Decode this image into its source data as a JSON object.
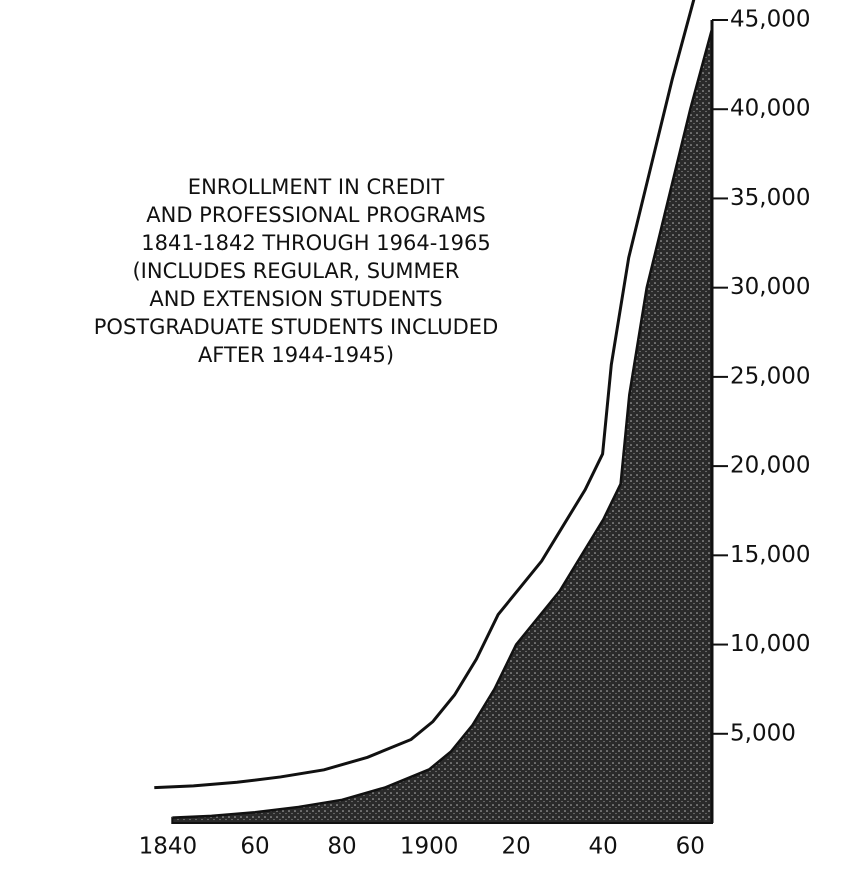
{
  "chart_data": {
    "type": "area",
    "title": [
      "ENROLLMENT IN CREDIT",
      "AND PROFESSIONAL PROGRAMS",
      "1841-1842 THROUGH 1964-1965"
    ],
    "subtitle": [
      "(INCLUDES REGULAR, SUMMER",
      "AND EXTENSION STUDENTS",
      "POSTGRADUATE STUDENTS INCLUDED",
      "AFTER 1944-1945)"
    ],
    "x": [
      1841,
      1850,
      1860,
      1870,
      1880,
      1890,
      1900,
      1905,
      1910,
      1915,
      1920,
      1925,
      1930,
      1935,
      1940,
      1944,
      1946,
      1950,
      1955,
      1960,
      1965
    ],
    "values": [
      300,
      400,
      600,
      900,
      1300,
      2000,
      3000,
      4000,
      5500,
      7500,
      10000,
      11500,
      13000,
      15000,
      17000,
      19000,
      24000,
      30000,
      35000,
      40000,
      44500
    ],
    "color": "#2a2a2a",
    "xlim": [
      1826,
      1965
    ],
    "xticks": [
      1840,
      {
        "value": 1860,
        "label": "60"
      },
      {
        "value": 1880,
        "label": "80"
      },
      1900,
      {
        "value": 1920,
        "label": "20"
      },
      {
        "value": 1940,
        "label": "40"
      },
      {
        "value": 1960,
        "label": "60"
      }
    ],
    "ylim": [
      0,
      45000
    ],
    "yticks": [
      {
        "value": 5000,
        "label": "5,000"
      },
      {
        "value": 10000,
        "label": "10,000"
      },
      {
        "value": 15000,
        "label": "15,000"
      },
      {
        "value": 20000,
        "label": "20,000"
      },
      {
        "value": 25000,
        "label": "25,000"
      },
      {
        "value": 30000,
        "label": "30,000"
      },
      {
        "value": 35000,
        "label": "35,000"
      },
      {
        "value": 40000,
        "label": "40,000"
      },
      {
        "value": 45000,
        "label": "45,000"
      }
    ],
    "grid": false
  }
}
